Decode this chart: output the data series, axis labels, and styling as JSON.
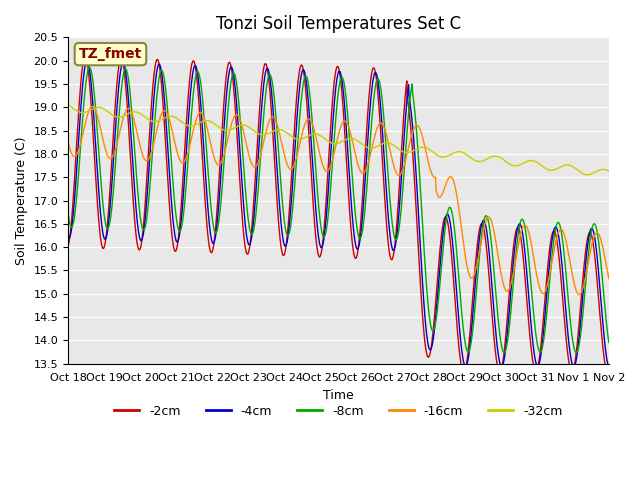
{
  "title": "Tonzi Soil Temperatures Set C",
  "xlabel": "Time",
  "ylabel": "Soil Temperature (C)",
  "ylim": [
    13.5,
    20.5
  ],
  "yticks": [
    13.5,
    14.0,
    14.5,
    15.0,
    15.5,
    16.0,
    16.5,
    17.0,
    17.5,
    18.0,
    18.5,
    19.0,
    19.5,
    20.0,
    20.5
  ],
  "xtick_labels": [
    "Oct 18",
    "Oct 19",
    "Oct 20",
    "Oct 21",
    "Oct 22",
    "Oct 23",
    "Oct 24",
    "Oct 25",
    "Oct 26",
    "Oct 27",
    "Oct 28",
    "Oct 29",
    "Oct 30",
    "Oct 31",
    "Nov 1",
    "Nov 2"
  ],
  "series_colors": [
    "#cc0000",
    "#0000cc",
    "#00aa00",
    "#ff8800",
    "#cccc00"
  ],
  "series_labels": [
    "-2cm",
    "-4cm",
    "-8cm",
    "-16cm",
    "-32cm"
  ],
  "annotation_text": "TZ_fmet",
  "annotation_bg": "#ffffcc",
  "annotation_border": "#888844",
  "annotation_fg": "#880000",
  "bg_color": "#e8e8e8",
  "n_points": 1500,
  "time_days": 15.0,
  "title_fontsize": 12,
  "axis_label_fontsize": 9,
  "tick_fontsize": 8,
  "legend_fontsize": 9
}
